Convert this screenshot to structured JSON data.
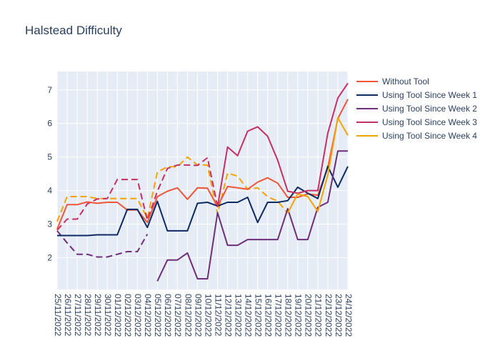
{
  "chart_data": {
    "type": "line",
    "title": "Halstead Difficulty",
    "xlabel": "",
    "ylabel": "",
    "x": [
      "25/11/2022",
      "26/11/2022",
      "27/11/2022",
      "28/11/2022",
      "29/11/2022",
      "30/11/2022",
      "01/12/2022",
      "02/12/2022",
      "03/12/2022",
      "04/12/2022",
      "05/12/2022",
      "06/12/2022",
      "07/12/2022",
      "08/12/2022",
      "09/12/2022",
      "10/12/2022",
      "11/12/2022",
      "12/12/2022",
      "13/12/2022",
      "14/12/2022",
      "15/12/2022",
      "16/12/2022",
      "17/12/2022",
      "18/12/2022",
      "19/12/2022",
      "20/12/2022",
      "21/12/2022",
      "22/12/2022",
      "23/12/2022",
      "24/12/2022"
    ],
    "ylim": [
      1.05,
      7.55
    ],
    "yticks": [
      2,
      3,
      4,
      5,
      6,
      7
    ],
    "grid": true,
    "legend_position": "right",
    "plot_background": "#e5ecf6",
    "series": [
      {
        "name": "Without Tool",
        "color": "#ef553b",
        "dash": "solid",
        "values": [
          2.85,
          3.58,
          3.58,
          3.66,
          3.62,
          3.65,
          3.65,
          3.42,
          3.42,
          3.05,
          3.82,
          3.98,
          4.08,
          3.74,
          4.08,
          4.07,
          3.52,
          4.12,
          4.08,
          4.04,
          4.25,
          4.38,
          4.22,
          3.8,
          3.8,
          3.9,
          3.86,
          4.68,
          6.15,
          6.72
        ]
      },
      {
        "name": "Using Tool Since Week 1",
        "color": "#0d2a63",
        "dash": "solid",
        "values": [
          2.66,
          2.66,
          2.66,
          2.66,
          2.68,
          2.68,
          2.68,
          3.44,
          3.44,
          2.9,
          3.68,
          2.8,
          2.8,
          2.8,
          3.62,
          3.65,
          3.54,
          3.65,
          3.65,
          3.8,
          3.05,
          3.65,
          3.65,
          3.7,
          4.1,
          3.92,
          3.76,
          4.72,
          4.1,
          4.72
        ]
      },
      {
        "name": "Using Tool Since Week 2",
        "color": "#6e2e7a",
        "dash": "solid",
        "values": [
          null,
          null,
          null,
          null,
          null,
          null,
          null,
          null,
          null,
          null,
          1.3,
          1.93,
          1.93,
          2.14,
          1.37,
          1.37,
          3.34,
          2.37,
          2.37,
          2.54,
          2.54,
          2.54,
          2.54,
          3.46,
          2.54,
          2.54,
          3.5,
          3.65,
          5.18,
          5.18
        ]
      },
      {
        "name": "Using Tool Since Week 3",
        "color": "#c62f63",
        "dash": "solid",
        "values": [
          null,
          null,
          null,
          null,
          null,
          null,
          null,
          null,
          null,
          null,
          null,
          null,
          null,
          null,
          null,
          null,
          3.52,
          5.3,
          5.04,
          5.77,
          5.9,
          5.62,
          4.9,
          3.98,
          3.92,
          4.0,
          4.0,
          5.71,
          6.76,
          7.2
        ]
      },
      {
        "name": "Using Tool Since Week 4",
        "color": "#f4a300",
        "dash": "solid",
        "values": [
          null,
          null,
          null,
          null,
          null,
          null,
          null,
          null,
          null,
          null,
          null,
          null,
          null,
          null,
          null,
          null,
          null,
          null,
          null,
          null,
          null,
          null,
          null,
          3.33,
          3.9,
          3.82,
          3.38,
          4.46,
          6.17,
          5.65
        ]
      },
      {
        "name": "",
        "color": "#f4a300",
        "dash": "dashed",
        "values": [
          3.08,
          3.82,
          3.82,
          3.82,
          3.76,
          3.76,
          3.76,
          3.76,
          3.76,
          3.17,
          4.55,
          4.71,
          4.71,
          5.0,
          4.76,
          4.76,
          3.3,
          4.52,
          4.43,
          4.04,
          4.08,
          3.82,
          3.68,
          3.33,
          null,
          null,
          null,
          null,
          null,
          null
        ]
      },
      {
        "name": "",
        "color": "#c62f63",
        "dash": "dashed",
        "values": [
          2.82,
          3.15,
          3.15,
          3.6,
          3.75,
          3.76,
          4.33,
          4.33,
          4.33,
          3.12,
          3.98,
          4.66,
          4.76,
          4.76,
          4.75,
          4.98,
          3.52,
          null,
          null,
          null,
          null,
          null,
          null,
          null,
          null,
          null,
          null,
          null,
          null,
          null
        ]
      },
      {
        "name": "",
        "color": "#6e2e7a",
        "dash": "dashed",
        "values": [
          2.8,
          2.44,
          2.1,
          2.1,
          2.02,
          2.02,
          2.1,
          2.18,
          2.18,
          2.7,
          null,
          null,
          null,
          null,
          null,
          null,
          null,
          null,
          null,
          null,
          null,
          null,
          null,
          null,
          null,
          null,
          null,
          null,
          null,
          null
        ]
      }
    ]
  }
}
